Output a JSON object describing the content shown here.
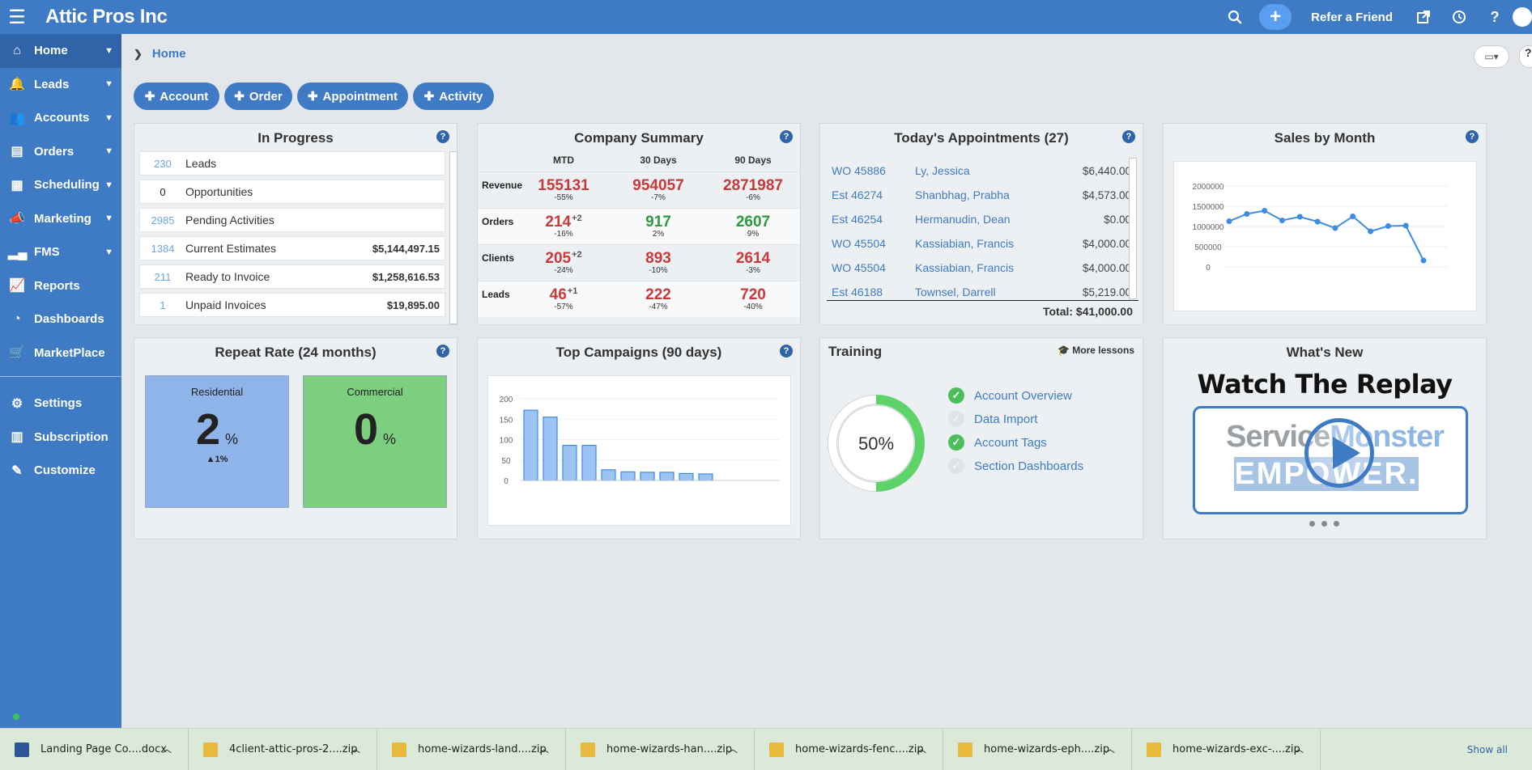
{
  "header": {
    "brand": "Attic Pros Inc",
    "refer_label": "Refer a Friend"
  },
  "sidebar": {
    "items": [
      {
        "label": "Home",
        "icon": "home-icon",
        "caret": true,
        "active": true
      },
      {
        "label": "Leads",
        "icon": "bell-icon",
        "caret": true
      },
      {
        "label": "Accounts",
        "icon": "users-icon",
        "caret": true
      },
      {
        "label": "Orders",
        "icon": "document-icon",
        "caret": true
      },
      {
        "label": "Scheduling",
        "icon": "calendar-icon",
        "caret": true
      },
      {
        "label": "Marketing",
        "icon": "megaphone-icon",
        "caret": true
      },
      {
        "label": "FMS",
        "icon": "signal-icon",
        "caret": true
      },
      {
        "label": "Reports",
        "icon": "line-chart-icon"
      },
      {
        "label": "Dashboards",
        "icon": "pie-chart-icon"
      },
      {
        "label": "MarketPlace",
        "icon": "cart-icon"
      }
    ],
    "bottom_items": [
      {
        "label": "Settings",
        "icon": "gear-icon"
      },
      {
        "label": "Subscription",
        "icon": "receipt-icon"
      },
      {
        "label": "Customize",
        "icon": "edit-icon"
      }
    ]
  },
  "breadcrumb": {
    "current": "Home"
  },
  "quick_buttons": [
    "Account",
    "Order",
    "Appointment",
    "Activity"
  ],
  "in_progress": {
    "title": "In Progress",
    "rows": [
      {
        "count": "230",
        "label": "Leads",
        "amount": ""
      },
      {
        "count": "0",
        "label": "Opportunities",
        "amount": ""
      },
      {
        "count": "2985",
        "label": "Pending Activities",
        "amount": ""
      },
      {
        "count": "1384",
        "label": "Current Estimates",
        "amount": "$5,144,497.15"
      },
      {
        "count": "211",
        "label": "Ready to Invoice",
        "amount": "$1,258,616.53"
      },
      {
        "count": "1",
        "label": "Unpaid Invoices",
        "amount": "$19,895.00"
      }
    ]
  },
  "company_summary": {
    "title": "Company Summary",
    "columns": [
      "MTD",
      "30 Days",
      "90 Days"
    ],
    "rows": [
      {
        "label": "Revenue",
        "cells": [
          {
            "value": "155131",
            "sup": "",
            "pct": "-55%",
            "color": "red"
          },
          {
            "value": "954057",
            "sup": "",
            "pct": "-7%",
            "color": "red"
          },
          {
            "value": "2871987",
            "sup": "",
            "pct": "-6%",
            "color": "red"
          }
        ]
      },
      {
        "label": "Orders",
        "cells": [
          {
            "value": "214",
            "sup": "+2",
            "pct": "-16%",
            "color": "red"
          },
          {
            "value": "917",
            "sup": "",
            "pct": "2%",
            "color": "green"
          },
          {
            "value": "2607",
            "sup": "",
            "pct": "9%",
            "color": "green"
          }
        ]
      },
      {
        "label": "Clients",
        "cells": [
          {
            "value": "205",
            "sup": "+2",
            "pct": "-24%",
            "color": "red"
          },
          {
            "value": "893",
            "sup": "",
            "pct": "-10%",
            "color": "red"
          },
          {
            "value": "2614",
            "sup": "",
            "pct": "-3%",
            "color": "red"
          }
        ]
      },
      {
        "label": "Leads",
        "cells": [
          {
            "value": "46",
            "sup": "+1",
            "pct": "-57%",
            "color": "red"
          },
          {
            "value": "222",
            "sup": "",
            "pct": "-47%",
            "color": "red"
          },
          {
            "value": "720",
            "sup": "",
            "pct": "-40%",
            "color": "red"
          }
        ]
      }
    ]
  },
  "appointments": {
    "title": "Today's Appointments (27)",
    "rows": [
      {
        "id": "WO 45886",
        "name": "Ly, Jessica",
        "amount": "$6,440.00"
      },
      {
        "id": "Est 46274",
        "name": "Shanbhag, Prabha",
        "amount": "$4,573.00"
      },
      {
        "id": "Est 46254",
        "name": "Hermanudin, Dean",
        "amount": "$0.00"
      },
      {
        "id": "WO 45504",
        "name": "Kassiabian, Francis",
        "amount": "$4,000.00"
      },
      {
        "id": "WO 45504",
        "name": "Kassiabian, Francis",
        "amount": "$4,000.00"
      },
      {
        "id": "Est 46188",
        "name": "Townsel, Darrell",
        "amount": "$5,219.00"
      }
    ],
    "total": "Total: $41,000.00"
  },
  "sales_by_month": {
    "title": "Sales by Month",
    "chart_data": {
      "type": "line",
      "y_ticks": [
        "2000000",
        "1500000",
        "1000000",
        "500000",
        "0"
      ],
      "ylim": [
        0,
        2000000
      ],
      "values": [
        1130000,
        1310000,
        1390000,
        1150000,
        1240000,
        1120000,
        960000,
        1250000,
        880000,
        1010000,
        1020000,
        160000
      ]
    }
  },
  "repeat_rate": {
    "title": "Repeat Rate (24 months)",
    "tiles": [
      {
        "label": "Residential",
        "value": "2",
        "unit": "%",
        "trend": "▲1%",
        "color": "#8fb4ea"
      },
      {
        "label": "Commercial",
        "value": "0",
        "unit": "%",
        "trend": "",
        "color": "#7ccf7e"
      }
    ]
  },
  "top_campaigns": {
    "title": "Top Campaigns (90 days)",
    "chart_data": {
      "type": "bar",
      "y_ticks": [
        "200",
        "150",
        "100",
        "50",
        "0"
      ],
      "ylim": [
        0,
        200
      ],
      "values": [
        172,
        155,
        86,
        86,
        26,
        21,
        20,
        20,
        17,
        16
      ]
    }
  },
  "training": {
    "title": "Training",
    "more_label": "More lessons",
    "progress": 0.5,
    "progress_label": "50%",
    "items": [
      {
        "label": "Account Overview",
        "done": true
      },
      {
        "label": "Data Import",
        "done": false
      },
      {
        "label": "Account Tags",
        "done": true
      },
      {
        "label": "Section Dashboards",
        "done": false
      }
    ]
  },
  "whats_new": {
    "title": "What's New",
    "headline": "Watch The Replay",
    "logo_word1": "Service",
    "logo_word2": "Monster",
    "logo_word3": "EMPOWER."
  },
  "downloads": {
    "items": [
      {
        "name": "Landing Page Co....docx",
        "type": "word"
      },
      {
        "name": "4client-attic-pros-2....zip",
        "type": "zip"
      },
      {
        "name": "home-wizards-land....zip",
        "type": "zip"
      },
      {
        "name": "home-wizards-han....zip",
        "type": "zip"
      },
      {
        "name": "home-wizards-fenc....zip",
        "type": "zip"
      },
      {
        "name": "home-wizards-eph....zip",
        "type": "zip"
      },
      {
        "name": "home-wizards-exc-....zip",
        "type": "zip"
      }
    ],
    "show_all": "Show all"
  }
}
